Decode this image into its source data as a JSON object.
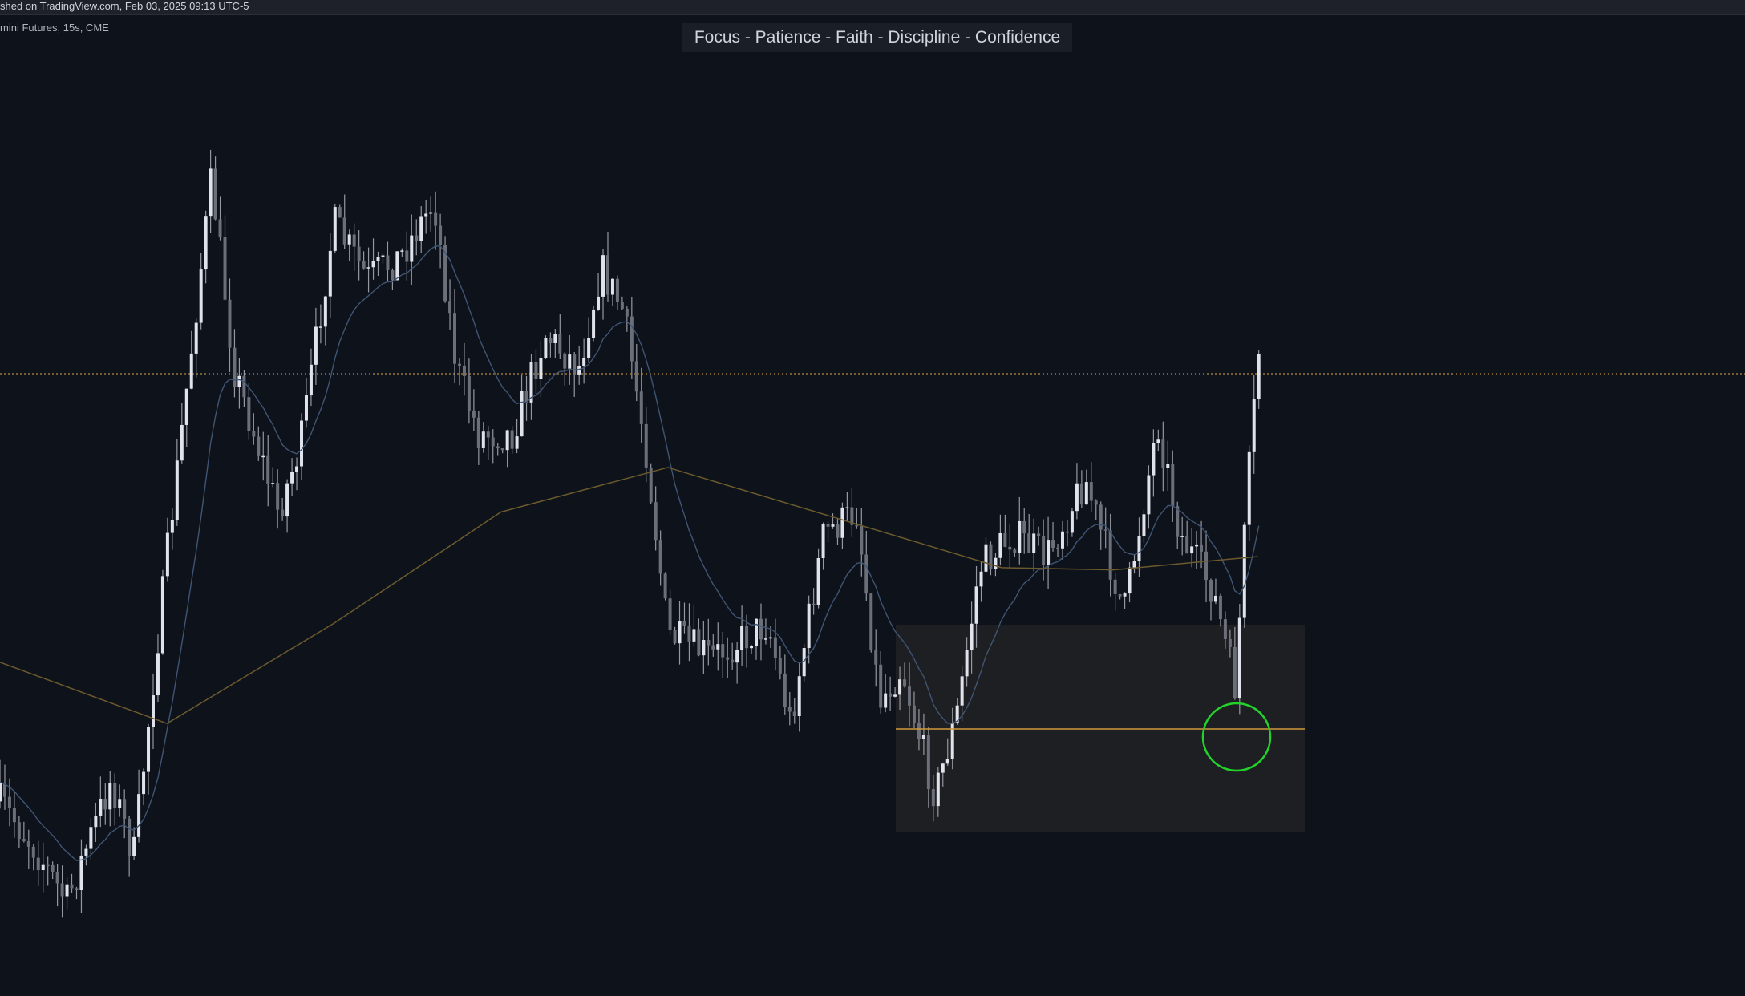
{
  "header": {
    "published": "shed on TradingView.com, Feb 03, 2025 09:13 UTC-5"
  },
  "symbol": {
    "info": "mini Futures, 15s, CME"
  },
  "banner": {
    "title": "Focus - Patience - Faith - Discipline - Confidence"
  }
}
